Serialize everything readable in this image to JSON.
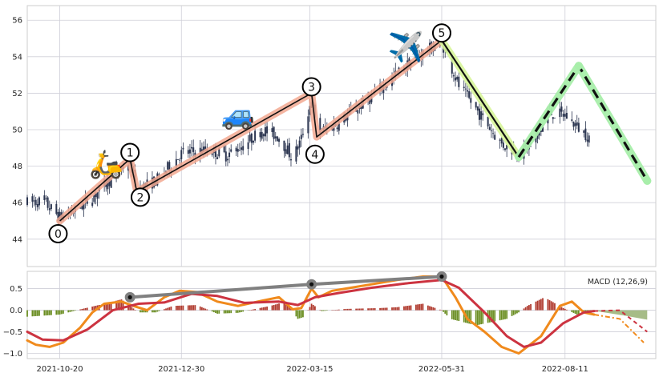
{
  "colors": {
    "panel_bg": "#eaeaf2",
    "grid": "#cfcfd8",
    "candle": "#2b3550",
    "wave_up_fill": "#f2a890",
    "wave_down_fill": "#d7f59a",
    "forecast_fill": "#a8eeaa",
    "macd_line": "#f08a1c",
    "signal_line": "#cc3340",
    "hist_neg": "#6b8e23",
    "hist_pos": "#b03a2e",
    "hist_forecast": "#9cb57a",
    "trend_line": "#808080"
  },
  "chart_data": [
    {
      "type": "candlestick",
      "ylim": [
        42.5,
        56.8
      ],
      "yticks": [
        "44",
        "46",
        "48",
        "50",
        "52",
        "54",
        "56"
      ],
      "ytick_values": [
        44,
        46,
        48,
        50,
        52,
        54,
        56
      ],
      "x_range": [
        "2021-10-01",
        "2022-10-03"
      ],
      "xticks": [
        "2021-10-20",
        "2021-12-30",
        "2022-03-15",
        "2022-05-31",
        "2022-08-11"
      ],
      "grid": true,
      "price_anchors": [
        [
          "2021-10-01",
          46.0
        ],
        [
          "2021-10-10",
          46.1
        ],
        [
          "2021-10-20",
          45.2
        ],
        [
          "2021-10-30",
          45.6
        ],
        [
          "2021-11-10",
          46.5
        ],
        [
          "2021-11-22",
          47.6
        ],
        [
          "2021-11-30",
          48.3
        ],
        [
          "2021-12-04",
          46.7
        ],
        [
          "2021-12-15",
          47.2
        ],
        [
          "2021-12-30",
          48.7
        ],
        [
          "2022-01-15",
          48.9
        ],
        [
          "2022-01-25",
          48.6
        ],
        [
          "2022-02-05",
          49.2
        ],
        [
          "2022-02-15",
          50.0
        ],
        [
          "2022-02-25",
          49.6
        ],
        [
          "2022-03-05",
          48.4
        ],
        [
          "2022-03-10",
          49.5
        ],
        [
          "2022-03-16",
          51.7
        ],
        [
          "2022-03-19",
          49.8
        ],
        [
          "2022-04-01",
          50.4
        ],
        [
          "2022-04-20",
          51.8
        ],
        [
          "2022-05-10",
          53.5
        ],
        [
          "2022-05-20",
          54.2
        ],
        [
          "2022-05-31",
          54.8
        ],
        [
          "2022-06-10",
          52.4
        ],
        [
          "2022-06-25",
          50.5
        ],
        [
          "2022-07-05",
          49.2
        ],
        [
          "2022-07-16",
          48.7
        ],
        [
          "2022-07-25",
          49.4
        ],
        [
          "2022-08-01",
          50.9
        ],
        [
          "2022-08-11",
          50.8
        ],
        [
          "2022-08-20",
          50.0
        ],
        [
          "2022-08-25",
          49.6
        ]
      ],
      "candle_range": [
        "2021-10-01",
        "2022-08-25"
      ],
      "waves": {
        "labels": [
          "0",
          "1",
          "2",
          "3",
          "4",
          "5"
        ],
        "points": [
          [
            "2021-10-20",
            45.0
          ],
          [
            "2021-11-30",
            48.4
          ],
          [
            "2021-12-04",
            46.6
          ],
          [
            "2022-03-16",
            52.0
          ],
          [
            "2022-03-19",
            49.6
          ],
          [
            "2022-05-31",
            54.9
          ]
        ],
        "label_positions": [
          [
            "2021-10-19",
            44.3
          ],
          [
            "2021-11-30",
            48.75
          ],
          [
            "2021-12-06",
            46.3
          ],
          [
            "2022-03-16",
            52.35
          ],
          [
            "2022-03-18",
            48.65
          ],
          [
            "2022-05-31",
            55.3
          ]
        ]
      },
      "abc_down": [
        [
          "2022-05-31",
          54.9
        ],
        [
          "2022-07-15",
          48.5
        ]
      ],
      "forecast": [
        [
          "2022-07-15",
          48.5
        ],
        [
          "2022-08-19",
          53.5
        ],
        [
          "2022-09-28",
          47.2
        ]
      ],
      "icons": [
        {
          "name": "scooter",
          "glyph": "🛵",
          "at": [
            "2021-11-16",
            47.6
          ],
          "size": 34
        },
        {
          "name": "car",
          "glyph": "🚙",
          "at": [
            "2022-02-01",
            50.3
          ],
          "size": 34
        },
        {
          "name": "airplane",
          "glyph": "✈️",
          "at": [
            "2022-05-10",
            54.0
          ],
          "size": 36
        }
      ]
    },
    {
      "type": "line+bar",
      "title": "MACD (12,26,9)",
      "ylim": [
        -1.12,
        0.9
      ],
      "yticks": [
        "0.5",
        "0.0",
        "−0.5",
        "−1.0"
      ],
      "ytick_values": [
        0.5,
        0.0,
        -0.5,
        -1.0
      ],
      "series": [
        {
          "role": "macd",
          "points": [
            [
              "2021-10-01",
              -0.7
            ],
            [
              "2021-10-06",
              -0.8
            ],
            [
              "2021-10-14",
              -0.85
            ],
            [
              "2021-10-22",
              -0.75
            ],
            [
              "2021-11-01",
              -0.4
            ],
            [
              "2021-11-08",
              -0.05
            ],
            [
              "2021-11-15",
              0.15
            ],
            [
              "2021-11-25",
              0.2
            ],
            [
              "2021-12-02",
              0.1
            ],
            [
              "2021-12-10",
              0.0
            ],
            [
              "2021-12-20",
              0.3
            ],
            [
              "2021-12-29",
              0.45
            ],
            [
              "2022-01-08",
              0.42
            ],
            [
              "2022-01-20",
              0.2
            ],
            [
              "2022-02-01",
              0.1
            ],
            [
              "2022-02-15",
              0.22
            ],
            [
              "2022-02-25",
              0.3
            ],
            [
              "2022-03-05",
              0.02
            ],
            [
              "2022-03-10",
              0.05
            ],
            [
              "2022-03-16",
              0.5
            ],
            [
              "2022-03-20",
              0.3
            ],
            [
              "2022-03-28",
              0.45
            ],
            [
              "2022-04-08",
              0.52
            ],
            [
              "2022-04-20",
              0.6
            ],
            [
              "2022-05-05",
              0.7
            ],
            [
              "2022-05-20",
              0.78
            ],
            [
              "2022-05-31",
              0.78
            ],
            [
              "2022-06-08",
              0.3
            ],
            [
              "2022-06-15",
              -0.2
            ],
            [
              "2022-06-25",
              -0.5
            ],
            [
              "2022-07-05",
              -0.85
            ],
            [
              "2022-07-15",
              -1.0
            ],
            [
              "2022-07-28",
              -0.6
            ],
            [
              "2022-08-08",
              0.1
            ],
            [
              "2022-08-15",
              0.2
            ],
            [
              "2022-08-22",
              -0.05
            ],
            [
              "2022-08-28",
              -0.1
            ]
          ],
          "forecast": [
            [
              "2022-08-28",
              -0.1
            ],
            [
              "2022-09-12",
              -0.2
            ],
            [
              "2022-09-26",
              -0.75
            ]
          ]
        },
        {
          "role": "signal",
          "points": [
            [
              "2021-10-01",
              -0.5
            ],
            [
              "2021-10-10",
              -0.68
            ],
            [
              "2021-10-22",
              -0.7
            ],
            [
              "2021-11-05",
              -0.45
            ],
            [
              "2021-11-20",
              0.0
            ],
            [
              "2021-12-05",
              0.15
            ],
            [
              "2021-12-20",
              0.18
            ],
            [
              "2022-01-05",
              0.38
            ],
            [
              "2022-01-20",
              0.33
            ],
            [
              "2022-02-05",
              0.17
            ],
            [
              "2022-02-25",
              0.2
            ],
            [
              "2022-03-08",
              0.12
            ],
            [
              "2022-03-18",
              0.3
            ],
            [
              "2022-04-01",
              0.4
            ],
            [
              "2022-04-20",
              0.52
            ],
            [
              "2022-05-10",
              0.62
            ],
            [
              "2022-05-31",
              0.7
            ],
            [
              "2022-06-10",
              0.52
            ],
            [
              "2022-06-25",
              -0.05
            ],
            [
              "2022-07-08",
              -0.6
            ],
            [
              "2022-07-18",
              -0.85
            ],
            [
              "2022-07-28",
              -0.75
            ],
            [
              "2022-08-10",
              -0.3
            ],
            [
              "2022-08-22",
              -0.05
            ],
            [
              "2022-08-28",
              -0.02
            ]
          ],
          "forecast": [
            [
              "2022-08-28",
              -0.02
            ],
            [
              "2022-09-12",
              0.0
            ],
            [
              "2022-09-28",
              -0.5
            ]
          ]
        }
      ],
      "histogram_anchors": [
        [
          "2021-10-01",
          -0.15
        ],
        [
          "2021-10-20",
          -0.1
        ],
        [
          "2021-11-01",
          0.02
        ],
        [
          "2021-11-15",
          0.15
        ],
        [
          "2021-11-25",
          0.25
        ],
        [
          "2021-12-05",
          -0.05
        ],
        [
          "2021-12-15",
          -0.05
        ],
        [
          "2021-12-25",
          0.1
        ],
        [
          "2022-01-08",
          0.12
        ],
        [
          "2022-01-20",
          -0.08
        ],
        [
          "2022-02-01",
          -0.06
        ],
        [
          "2022-02-10",
          0.02
        ],
        [
          "2022-02-20",
          0.1
        ],
        [
          "2022-03-01",
          0.2
        ],
        [
          "2022-03-08",
          -0.2
        ],
        [
          "2022-03-12",
          -0.15
        ],
        [
          "2022-03-16",
          0.15
        ],
        [
          "2022-03-22",
          -0.02
        ],
        [
          "2022-04-05",
          0.03
        ],
        [
          "2022-04-25",
          0.05
        ],
        [
          "2022-05-05",
          0.07
        ],
        [
          "2022-05-20",
          0.15
        ],
        [
          "2022-05-31",
          0.0
        ],
        [
          "2022-06-05",
          -0.2
        ],
        [
          "2022-06-20",
          -0.35
        ],
        [
          "2022-07-08",
          -0.2
        ],
        [
          "2022-07-15",
          -0.05
        ],
        [
          "2022-07-20",
          0.1
        ],
        [
          "2022-07-30",
          0.3
        ],
        [
          "2022-08-10",
          0.05
        ],
        [
          "2022-08-18",
          -0.1
        ],
        [
          "2022-08-28",
          -0.05
        ]
      ],
      "histogram_range": [
        "2021-10-01",
        "2022-08-28"
      ],
      "histogram_forecast": [
        [
          "2022-08-29",
          -0.02
        ],
        [
          "2022-09-14",
          -0.12
        ],
        [
          "2022-09-28",
          -0.22
        ]
      ],
      "trend_line": [
        [
          "2021-11-30",
          0.3
        ],
        [
          "2022-03-16",
          0.6
        ],
        [
          "2022-05-31",
          0.78
        ]
      ]
    }
  ]
}
